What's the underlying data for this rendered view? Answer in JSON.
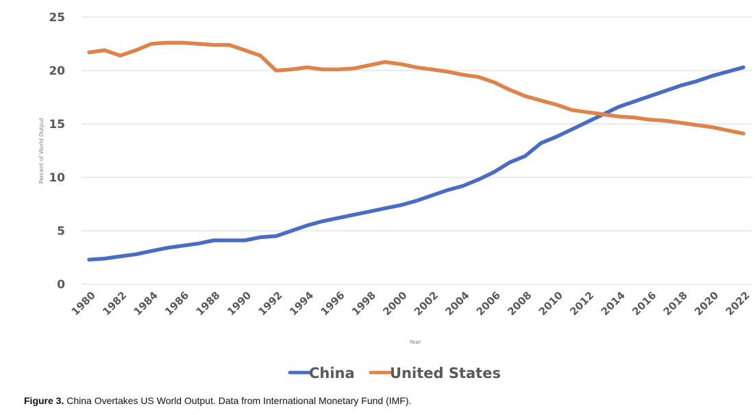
{
  "chart_data": {
    "type": "line",
    "title": "",
    "xlabel": "Year",
    "ylabel": "Percent of World Output",
    "ylim": [
      0,
      25
    ],
    "yticks": [
      0,
      5,
      10,
      15,
      20,
      25
    ],
    "grid": true,
    "legend": "bottom-center",
    "x": [
      1980,
      1981,
      1982,
      1983,
      1984,
      1985,
      1986,
      1987,
      1988,
      1989,
      1990,
      1991,
      1992,
      1993,
      1994,
      1995,
      1996,
      1997,
      1998,
      1999,
      2000,
      2001,
      2002,
      2003,
      2004,
      2005,
      2006,
      2007,
      2008,
      2009,
      2010,
      2011,
      2012,
      2013,
      2014,
      2015,
      2016,
      2017,
      2018,
      2019,
      2020,
      2021,
      2022
    ],
    "xtick_labels": [
      "1980",
      "1982",
      "1984",
      "1986",
      "1988",
      "1990",
      "1992",
      "1994",
      "1996",
      "1998",
      "2000",
      "2002",
      "2004",
      "2006",
      "2008",
      "2010",
      "2012",
      "2014",
      "2016",
      "2018",
      "2020",
      "2022"
    ],
    "series": [
      {
        "name": "China",
        "color": "#4A6DC4",
        "values": [
          2.3,
          2.4,
          2.6,
          2.8,
          3.1,
          3.4,
          3.6,
          3.8,
          4.1,
          4.1,
          4.1,
          4.4,
          4.5,
          5.0,
          5.5,
          5.9,
          6.2,
          6.5,
          6.8,
          7.1,
          7.4,
          7.8,
          8.3,
          8.8,
          9.2,
          9.8,
          10.5,
          11.4,
          12.0,
          13.2,
          13.8,
          14.5,
          15.2,
          15.9,
          16.6,
          17.1,
          17.6,
          18.1,
          18.6,
          19.0,
          19.5,
          19.9,
          20.3
        ]
      },
      {
        "name": "United States",
        "color": "#E0834A",
        "values": [
          21.7,
          21.9,
          21.4,
          21.9,
          22.5,
          22.6,
          22.6,
          22.5,
          22.4,
          22.4,
          21.9,
          21.4,
          20.0,
          20.1,
          20.3,
          20.1,
          20.1,
          20.2,
          20.5,
          20.8,
          20.6,
          20.3,
          20.1,
          19.9,
          19.6,
          19.4,
          18.9,
          18.2,
          17.6,
          17.2,
          16.8,
          16.3,
          16.1,
          15.9,
          15.7,
          15.6,
          15.4,
          15.3,
          15.1,
          14.9,
          14.7,
          14.4,
          14.1
        ]
      }
    ]
  },
  "caption": {
    "label": "Figure 3.",
    "text": " China Overtakes US World Output. Data from International Monetary Fund (IMF)."
  }
}
